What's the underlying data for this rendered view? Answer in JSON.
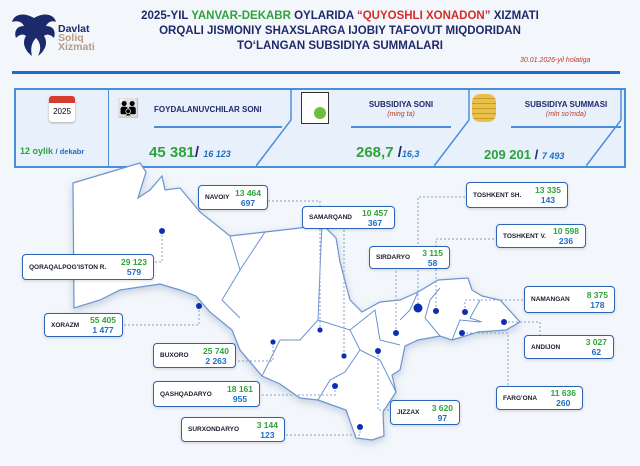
{
  "logo": {
    "line1": "Davlat",
    "line2": "Soliq",
    "line3": "Xizmati"
  },
  "title": {
    "p1": "2025-YIL ",
    "p2": "YANVAR-DEKABR",
    "p3": " OYLARIDA ",
    "p4": "“QUYOSHLI XONADON”",
    "p5": " XIZMATI",
    "line2": "ORQALI JISMONIY SHAXSLARGA IJOBIY TAFOVUT MIQDORIDAN",
    "line3": "TO‘LANGAN SUBSIDIYA SUMMALARI"
  },
  "date": "30.01.2026-yil holatiga",
  "stats": {
    "calendar_year": "2025",
    "period": "12 oylik",
    "period_sub": "/ dekabr",
    "beneficiaries": {
      "label": "FOYDALANUVCHILAR SONI",
      "total": "45 381",
      "month": "16 123"
    },
    "count": {
      "label": "SUBSIDIYA SONI",
      "unit": "(ming ta)",
      "total": "268,7",
      "month": "16,3"
    },
    "sum": {
      "label": "SUBSIDIYA SUMMASI",
      "unit": "(mln so'mda)",
      "total": "209 201",
      "month": "7 493"
    },
    "colors": {
      "total": "#2fa23c",
      "month": "#1e6cc4",
      "accent": "#1e6cc4"
    }
  },
  "regions": [
    {
      "name": "NAVOIY",
      "v1": "13 464",
      "v2": "697"
    },
    {
      "name": "SAMARQAND",
      "v1": "10 457",
      "v2": "367"
    },
    {
      "name": "QORAQALPOG'ISTON R.",
      "v1": "29 123",
      "v2": "579"
    },
    {
      "name": "XORAZM",
      "v1": "55 405",
      "v2": "1 477"
    },
    {
      "name": "BUXORO",
      "v1": "25 740",
      "v2": "2 263"
    },
    {
      "name": "QASHQADARYO",
      "v1": "18 161",
      "v2": "955"
    },
    {
      "name": "SURXONDARYO",
      "v1": "3 144",
      "v2": "123"
    },
    {
      "name": "TOSHKENT SH.",
      "v1": "13 335",
      "v2": "143"
    },
    {
      "name": "TOSHKENT V.",
      "v1": "10 598",
      "v2": "236"
    },
    {
      "name": "SIRDARYO",
      "v1": "3 115",
      "v2": "58"
    },
    {
      "name": "NAMANGAN",
      "v1": "8 375",
      "v2": "178"
    },
    {
      "name": "ANDIJON",
      "v1": "3 027",
      "v2": "62"
    },
    {
      "name": "FARG'ONA",
      "v1": "11 636",
      "v2": "260"
    },
    {
      "name": "JIZZAX",
      "v1": "3 620",
      "v2": "97"
    }
  ]
}
